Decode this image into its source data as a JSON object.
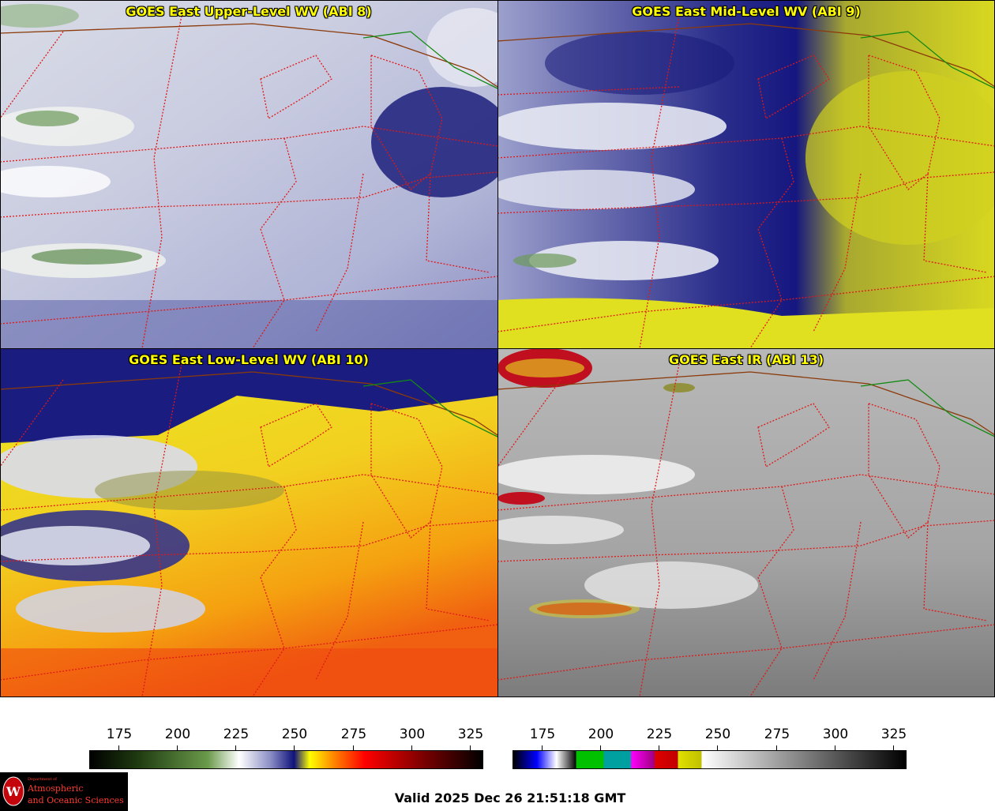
{
  "panels": [
    {
      "title": "GOES East Upper-Level WV (ABI 8)",
      "palette": "upper"
    },
    {
      "title": "GOES East Mid-Level WV (ABI 9)",
      "palette": "mid"
    },
    {
      "title": "GOES East Low-Level WV (ABI 10)",
      "palette": "low"
    },
    {
      "title": "GOES East IR (ABI 13)",
      "palette": "ir"
    }
  ],
  "colorbars": {
    "wv": {
      "ticks": [
        "175",
        "200",
        "225",
        "250",
        "275",
        "300",
        "325"
      ]
    },
    "ir": {
      "ticks": [
        "175",
        "200",
        "225",
        "250",
        "275",
        "300",
        "325"
      ]
    }
  },
  "valid_time": "Valid 2025 Dec 26 21:51:18 GMT",
  "logo": {
    "line1": "Department of",
    "line2": "Atmospheric",
    "line3": "and Oceanic Sciences",
    "seal_letter": "W"
  },
  "colors": {
    "state_border": "#e01818",
    "country_border": "#8b3a0a",
    "canada_border": "#138a13",
    "title_text": "#ffff00"
  }
}
